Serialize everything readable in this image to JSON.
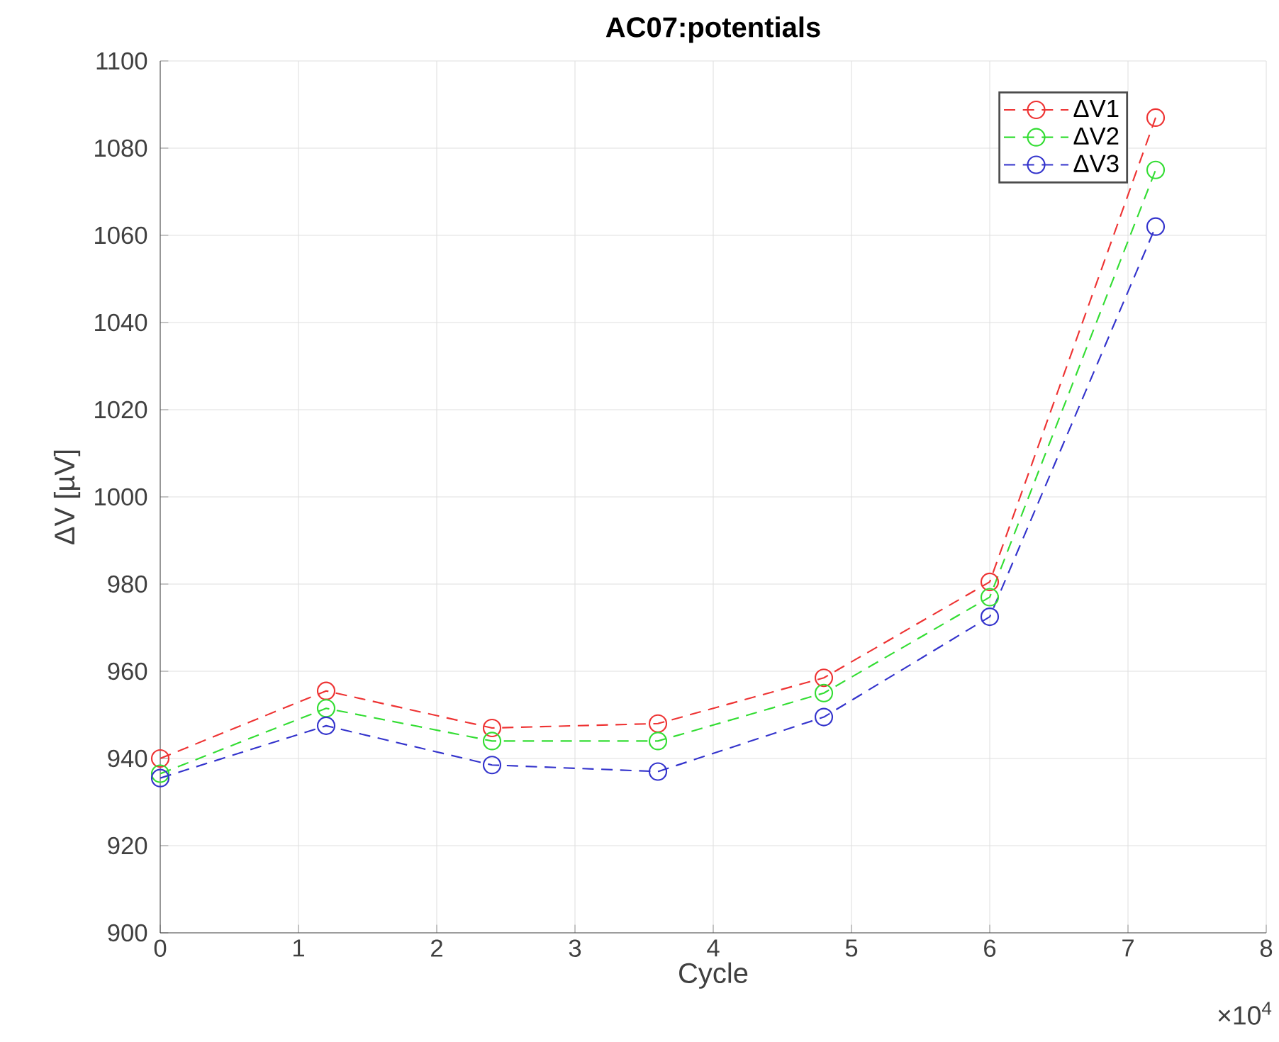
{
  "chart_data": {
    "type": "line",
    "title": "AC07:potentials",
    "xlabel": "Cycle",
    "ylabel": "ΔV [µV]",
    "annotations": [
      "×10$^{4}$"
    ],
    "x": [
      0,
      1.2,
      2.4,
      3.6,
      4.8,
      6.0,
      7.2
    ],
    "series": [
      {
        "name": "ΔV1",
        "color": "#ee3333",
        "values": [
          940,
          955.5,
          947,
          948,
          958.5,
          980.5,
          1087
        ]
      },
      {
        "name": "ΔV2",
        "color": "#33dd33",
        "values": [
          936.5,
          951.5,
          944,
          944,
          955,
          977,
          1075
        ]
      },
      {
        "name": "ΔV3",
        "color": "#3333cc",
        "values": [
          935.5,
          947.5,
          938.5,
          937,
          949.5,
          972.5,
          1062
        ]
      }
    ],
    "xlim": [
      0,
      8
    ],
    "ylim": [
      900,
      1100
    ],
    "xticks": [
      0,
      1,
      2,
      3,
      4,
      5,
      6,
      7,
      8
    ],
    "yticks": [
      900,
      920,
      940,
      960,
      980,
      1000,
      1020,
      1040,
      1060,
      1080,
      1100
    ],
    "grid": true,
    "legend": "top right",
    "marker": "circle",
    "line_style": "dashed"
  }
}
